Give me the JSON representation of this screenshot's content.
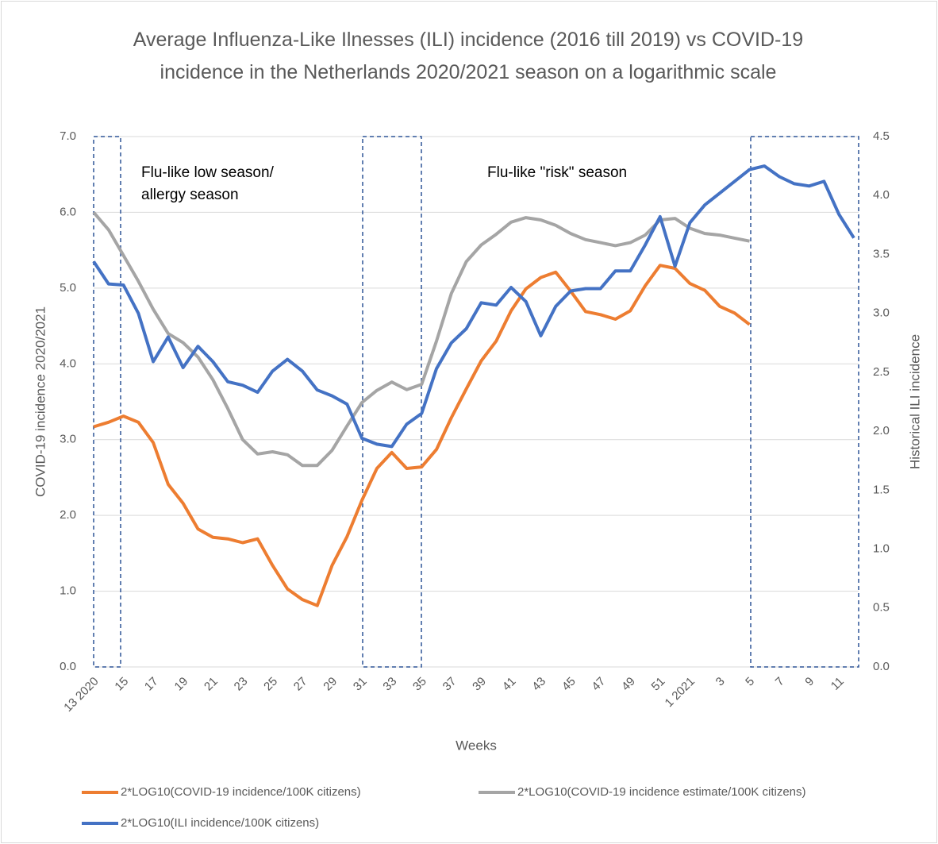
{
  "chart_data": {
    "type": "line",
    "title": "Average Influenza-Like Ilnesses (ILI) incidence (2016 till 2019) vs COVID-19 incidence in the Netherlands 2020/2021 season on a logarithmic scale",
    "x_label": "Weeks",
    "y_label": "COVID-19 incidence 2020/2021",
    "y2_label": "Historical ILI incidence",
    "annotations": [
      [
        "Flu-like low season/",
        "allergy season"
      ],
      [
        "Flu-like \"risk\" season"
      ]
    ],
    "categories": [
      "13 2020",
      null,
      "15",
      null,
      "17",
      null,
      "19",
      null,
      "21",
      null,
      "23",
      null,
      "25",
      null,
      "27",
      null,
      "29",
      null,
      "31",
      null,
      "33",
      null,
      "35",
      null,
      "37",
      null,
      "39",
      null,
      "41",
      null,
      "43",
      null,
      "45",
      null,
      "47",
      null,
      "49",
      null,
      "51",
      null,
      "1 2021",
      null,
      "3",
      null,
      "5",
      null,
      "7",
      null,
      "9",
      null,
      "11",
      null
    ],
    "ylim": [
      0,
      7
    ],
    "yticks": [
      {
        "value": 0,
        "label": "0.0"
      },
      {
        "value": 1,
        "label": "1.0"
      },
      {
        "value": 2,
        "label": "2.0"
      },
      {
        "value": 3,
        "label": "3.0"
      },
      {
        "value": 4,
        "label": "4.0"
      },
      {
        "value": 5,
        "label": "5.0"
      },
      {
        "value": 6,
        "label": "6.0"
      },
      {
        "value": 7,
        "label": "7.0"
      }
    ],
    "y2lim": [
      0,
      4.5
    ],
    "y2ticks": [
      {
        "value": 0,
        "label": "0.0"
      },
      0.5,
      {
        "value": 1,
        "label": "1.0"
      },
      1.5,
      {
        "value": 2,
        "label": "2.0"
      },
      2.5,
      {
        "value": 3,
        "label": "3.0"
      },
      3.5,
      {
        "value": 4,
        "label": "4.0"
      },
      4.5
    ],
    "grid": true,
    "legend": "bottom",
    "series": [
      {
        "name": "2*LOG10(COVID-19 incidence/100K citizens)",
        "color": "#ed7d31",
        "values": [
          3.17,
          3.23,
          3.31,
          3.23,
          2.96,
          2.41,
          2.16,
          1.82,
          1.71,
          1.69,
          1.64,
          1.69,
          1.34,
          1.03,
          0.89,
          0.81,
          1.34,
          1.72,
          2.2,
          2.62,
          2.83,
          2.62,
          2.64,
          2.87,
          3.29,
          3.67,
          4.04,
          4.3,
          4.7,
          4.99,
          5.14,
          5.21,
          4.96,
          4.69,
          4.65,
          4.59,
          4.7,
          5.03,
          5.3,
          5.26,
          5.06,
          4.97,
          4.76,
          4.67,
          4.52,
          null,
          null,
          null,
          null,
          null,
          null,
          null
        ]
      },
      {
        "name": "2*LOG10(COVID-19 incidence estimate/100K citizens)",
        "color": "#a5a5a5",
        "values": [
          6.0,
          5.77,
          5.43,
          5.09,
          4.72,
          4.4,
          4.28,
          4.09,
          3.79,
          3.41,
          3.0,
          2.81,
          2.84,
          2.8,
          2.66,
          2.66,
          2.86,
          3.18,
          3.49,
          3.65,
          3.76,
          3.66,
          3.73,
          4.3,
          4.93,
          5.35,
          5.57,
          5.71,
          5.87,
          5.93,
          5.9,
          5.83,
          5.72,
          5.64,
          5.6,
          5.56,
          5.6,
          5.7,
          5.9,
          5.92,
          5.79,
          5.72,
          5.7,
          5.66,
          5.62,
          null,
          null,
          null,
          null,
          null,
          null,
          null
        ]
      },
      {
        "name": "2*LOG10(ILI incidence/100K citizens)",
        "color": "#4472c4",
        "axis": "y2",
        "values": [
          3.44,
          3.25,
          3.24,
          3.0,
          2.59,
          2.8,
          2.54,
          2.72,
          2.59,
          2.42,
          2.39,
          2.33,
          2.51,
          2.61,
          2.51,
          2.35,
          2.3,
          2.23,
          1.94,
          1.89,
          1.87,
          2.06,
          2.15,
          2.53,
          2.75,
          2.87,
          3.09,
          3.07,
          3.22,
          3.1,
          2.81,
          3.06,
          3.19,
          3.21,
          3.21,
          3.36,
          3.36,
          3.58,
          3.82,
          3.4,
          3.77,
          3.92,
          4.02,
          4.12,
          4.22,
          4.25,
          4.16,
          4.1,
          4.08,
          4.12,
          3.84,
          3.64
        ]
      }
    ]
  }
}
